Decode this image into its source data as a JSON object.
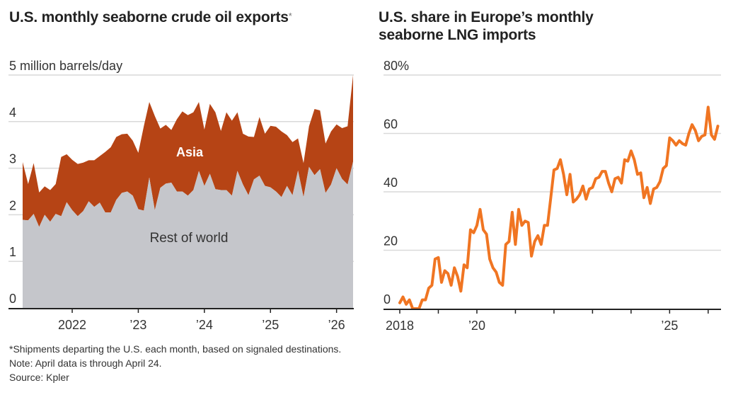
{
  "colors": {
    "asia": "#b64415",
    "rest_of_world": "#c5c6cb",
    "lng_line": "#f07522",
    "gridline": "#d9d9d9",
    "axis": "#222222",
    "text": "#333333"
  },
  "footnotes": {
    "asterisk": "*Shipments departing the U.S. each month, based on signaled destinations.",
    "note": "Note: April data is through April 24.",
    "source": "Source: Kpler"
  },
  "chart_data": [
    {
      "type": "area",
      "stacked": true,
      "title": "U.S. monthly seaborne crude oil exports",
      "title_marker": "*",
      "ylabel": "5 million barrels/day",
      "ylim": [
        0,
        5
      ],
      "yticks": [
        0,
        1,
        2,
        3,
        4,
        5
      ],
      "ytick_labels": [
        "0",
        "1",
        "2",
        "3",
        "4",
        "5 million barrels/day"
      ],
      "xlim": [
        "2021-04",
        "2026-04"
      ],
      "xticks": [
        "2022-01",
        "2023-01",
        "2024-01",
        "2025-01",
        "2026-01"
      ],
      "xtick_labels": [
        "2022",
        "’23",
        "’24",
        "’25",
        "’26"
      ],
      "grid": true,
      "x_start": "2021-04",
      "x_step": "month",
      "series": [
        {
          "name": "Rest of world",
          "label": "Rest of world",
          "values": [
            1.89,
            1.88,
            2.02,
            1.74,
            2.0,
            1.85,
            2.02,
            1.97,
            2.27,
            2.1,
            1.97,
            2.08,
            2.29,
            2.17,
            2.26,
            2.05,
            2.05,
            2.32,
            2.47,
            2.5,
            2.41,
            2.12,
            2.09,
            2.8,
            2.1,
            2.58,
            2.67,
            2.69,
            2.5,
            2.5,
            2.41,
            2.53,
            2.94,
            2.62,
            2.88,
            2.55,
            2.53,
            2.53,
            2.41,
            2.94,
            2.65,
            2.42,
            2.76,
            2.84,
            2.62,
            2.59,
            2.5,
            2.38,
            2.62,
            2.42,
            2.95,
            2.38,
            3.03,
            2.85,
            2.98,
            2.47,
            2.65,
            3.0,
            2.77,
            2.65,
            3.14
          ]
        },
        {
          "name": "Asia",
          "label": "Asia",
          "total_values": [
            3.13,
            2.66,
            3.11,
            2.48,
            2.61,
            2.53,
            2.66,
            3.24,
            3.3,
            3.18,
            3.09,
            3.12,
            3.17,
            3.17,
            3.26,
            3.35,
            3.45,
            3.67,
            3.73,
            3.74,
            3.59,
            3.33,
            3.9,
            4.42,
            4.12,
            3.85,
            3.93,
            3.82,
            4.05,
            4.22,
            4.14,
            4.2,
            4.42,
            3.83,
            4.38,
            4.2,
            3.8,
            4.2,
            4.02,
            4.2,
            3.74,
            3.68,
            3.67,
            4.1,
            3.74,
            3.91,
            3.89,
            3.79,
            3.71,
            3.56,
            3.64,
            3.11,
            3.9,
            4.27,
            4.24,
            3.53,
            3.79,
            3.94,
            3.86,
            3.9,
            5.0
          ]
        }
      ]
    },
    {
      "type": "line",
      "title": "U.S. share in Europe’s monthly seaborne LNG imports",
      "ylim": [
        0,
        80
      ],
      "yticks": [
        0,
        20,
        40,
        60,
        80
      ],
      "ytick_labels": [
        "0",
        "20",
        "40",
        "60",
        "80%"
      ],
      "xlim": [
        "2018-01",
        "2026-04"
      ],
      "xticks": [
        "2018-01",
        "2019-01",
        "2020-01",
        "2021-01",
        "2022-01",
        "2023-01",
        "2024-01",
        "2025-01",
        "2026-01"
      ],
      "xtick_labels": [
        "2018",
        "",
        "’20",
        "",
        "",
        "",
        "",
        "’25",
        ""
      ],
      "grid": true,
      "x_start": "2018-01",
      "x_step": "month",
      "series": [
        {
          "name": "U.S. share",
          "values": [
            2,
            4,
            1.5,
            3,
            0,
            0,
            0,
            3,
            3,
            7,
            8,
            17,
            17.5,
            9,
            13,
            12,
            8,
            14,
            11,
            6,
            15,
            14,
            27,
            26,
            28.5,
            34,
            27,
            25.5,
            17,
            14,
            12.5,
            9,
            8,
            22,
            23,
            33,
            22,
            34,
            28.5,
            30,
            29.5,
            18,
            23,
            25,
            22,
            28.5,
            28.5,
            38,
            47.5,
            48,
            51,
            46,
            39,
            46,
            36.5,
            37.5,
            39,
            42,
            37.5,
            41,
            41.5,
            44.5,
            45,
            47,
            47,
            43,
            40,
            44.5,
            45,
            43,
            51,
            50.5,
            54,
            51,
            46,
            46.5,
            38,
            41.5,
            36,
            41,
            41.5,
            43.5,
            48,
            49,
            58.5,
            57.5,
            56,
            57.5,
            56.5,
            56,
            60,
            63,
            61,
            57.5,
            59,
            59.5,
            69,
            59.5,
            58,
            62.5
          ]
        }
      ]
    }
  ]
}
